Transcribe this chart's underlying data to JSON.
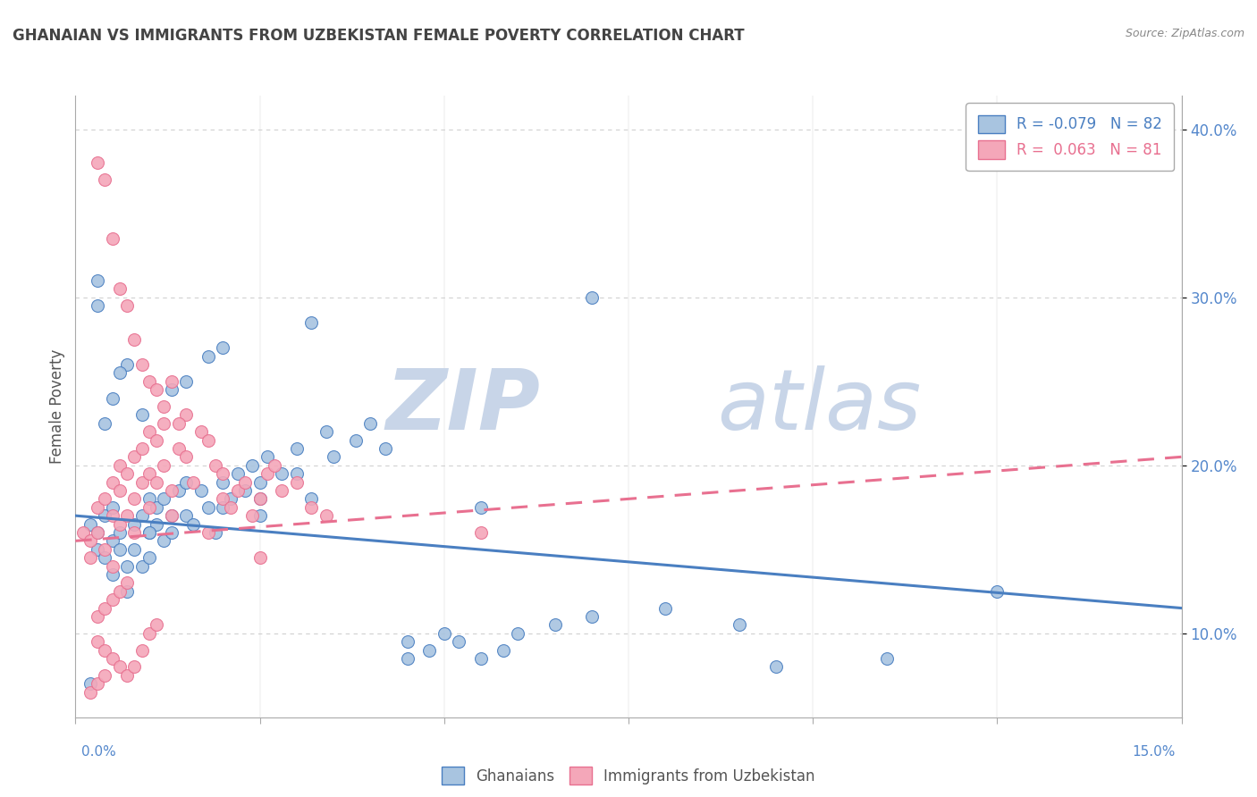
{
  "title": "GHANAIAN VS IMMIGRANTS FROM UZBEKISTAN FEMALE POVERTY CORRELATION CHART",
  "source_text": "Source: ZipAtlas.com",
  "ylabel": "Female Poverty",
  "xlim": [
    0.0,
    15.0
  ],
  "ylim": [
    5.0,
    42.0
  ],
  "yticks": [
    10.0,
    20.0,
    30.0,
    40.0
  ],
  "ytick_labels": [
    "10.0%",
    "20.0%",
    "30.0%",
    "40.0%"
  ],
  "legend_r1": "R = -0.079",
  "legend_n1": "N = 82",
  "legend_r2": "R =  0.063",
  "legend_n2": "N = 81",
  "color_blue": "#a8c4e0",
  "color_pink": "#f4a7b9",
  "color_blue_line": "#4a7fc1",
  "color_pink_line": "#e87090",
  "color_title": "#444444",
  "watermark_zip": "ZIP",
  "watermark_atlas": "atlas",
  "watermark_color": "#cdd8ea",
  "blue_scatter_x": [
    0.2,
    0.3,
    0.3,
    0.4,
    0.4,
    0.5,
    0.5,
    0.5,
    0.6,
    0.6,
    0.7,
    0.7,
    0.8,
    0.8,
    0.9,
    0.9,
    1.0,
    1.0,
    1.0,
    1.1,
    1.1,
    1.2,
    1.2,
    1.3,
    1.3,
    1.4,
    1.5,
    1.5,
    1.6,
    1.7,
    1.8,
    1.9,
    2.0,
    2.0,
    2.1,
    2.2,
    2.3,
    2.4,
    2.5,
    2.5,
    2.6,
    2.8,
    3.0,
    3.0,
    3.2,
    3.4,
    3.5,
    3.8,
    4.0,
    4.2,
    4.5,
    4.5,
    4.8,
    5.0,
    5.2,
    5.5,
    5.8,
    6.0,
    6.5,
    7.0,
    7.0,
    8.0,
    9.0,
    9.5,
    11.0,
    5.5,
    3.2,
    2.0,
    1.8,
    1.5,
    1.3,
    0.9,
    0.7,
    0.6,
    0.5,
    0.4,
    0.3,
    0.3,
    0.2,
    1.0,
    2.5,
    12.5
  ],
  "blue_scatter_y": [
    16.5,
    16.0,
    15.0,
    17.0,
    14.5,
    17.5,
    15.5,
    13.5,
    16.0,
    15.0,
    14.0,
    12.5,
    16.5,
    15.0,
    17.0,
    14.0,
    18.0,
    16.0,
    14.5,
    17.5,
    16.5,
    18.0,
    15.5,
    17.0,
    16.0,
    18.5,
    19.0,
    17.0,
    16.5,
    18.5,
    17.5,
    16.0,
    19.0,
    17.5,
    18.0,
    19.5,
    18.5,
    20.0,
    19.0,
    18.0,
    20.5,
    19.5,
    21.0,
    19.5,
    18.0,
    22.0,
    20.5,
    21.5,
    22.5,
    21.0,
    9.5,
    8.5,
    9.0,
    10.0,
    9.5,
    8.5,
    9.0,
    10.0,
    10.5,
    11.0,
    30.0,
    11.5,
    10.5,
    8.0,
    8.5,
    17.5,
    28.5,
    27.0,
    26.5,
    25.0,
    24.5,
    23.0,
    26.0,
    25.5,
    24.0,
    22.5,
    29.5,
    31.0,
    7.0,
    16.0,
    17.0,
    12.5
  ],
  "pink_scatter_x": [
    0.1,
    0.2,
    0.2,
    0.3,
    0.3,
    0.4,
    0.4,
    0.5,
    0.5,
    0.5,
    0.6,
    0.6,
    0.6,
    0.7,
    0.7,
    0.8,
    0.8,
    0.8,
    0.9,
    0.9,
    1.0,
    1.0,
    1.0,
    1.1,
    1.1,
    1.2,
    1.2,
    1.3,
    1.3,
    1.4,
    1.5,
    1.5,
    1.6,
    1.7,
    1.8,
    1.9,
    2.0,
    2.0,
    2.1,
    2.2,
    2.3,
    2.4,
    2.5,
    2.6,
    2.7,
    2.8,
    3.0,
    3.2,
    3.4,
    1.8,
    0.3,
    0.4,
    0.5,
    0.6,
    0.7,
    0.8,
    0.9,
    1.0,
    1.1,
    1.2,
    1.3,
    1.4,
    0.3,
    0.4,
    0.5,
    0.6,
    0.7,
    0.8,
    0.9,
    1.0,
    1.1,
    0.3,
    0.4,
    0.5,
    0.6,
    0.7,
    2.5,
    0.2,
    0.3,
    0.4,
    5.5
  ],
  "pink_scatter_y": [
    16.0,
    15.5,
    14.5,
    17.5,
    16.0,
    18.0,
    15.0,
    19.0,
    17.0,
    14.0,
    20.0,
    18.5,
    16.5,
    19.5,
    17.0,
    20.5,
    18.0,
    16.0,
    21.0,
    19.0,
    22.0,
    19.5,
    17.5,
    21.5,
    19.0,
    22.5,
    20.0,
    18.5,
    17.0,
    21.0,
    23.0,
    20.5,
    19.0,
    22.0,
    21.5,
    20.0,
    19.5,
    18.0,
    17.5,
    18.5,
    19.0,
    17.0,
    18.0,
    19.5,
    20.0,
    18.5,
    19.0,
    17.5,
    17.0,
    16.0,
    38.0,
    37.0,
    33.5,
    30.5,
    29.5,
    27.5,
    26.0,
    25.0,
    24.5,
    23.5,
    25.0,
    22.5,
    9.5,
    9.0,
    8.5,
    8.0,
    7.5,
    8.0,
    9.0,
    10.0,
    10.5,
    11.0,
    11.5,
    12.0,
    12.5,
    13.0,
    14.5,
    6.5,
    7.0,
    7.5,
    16.0
  ],
  "blue_trend_x": [
    0.0,
    15.0
  ],
  "blue_trend_y": [
    17.0,
    11.5
  ],
  "pink_trend_x": [
    0.0,
    15.0
  ],
  "pink_trend_y": [
    15.5,
    20.5
  ],
  "grid_color": "#d0d0d0",
  "axis_color": "#aaaaaa",
  "bg_color": "#ffffff"
}
